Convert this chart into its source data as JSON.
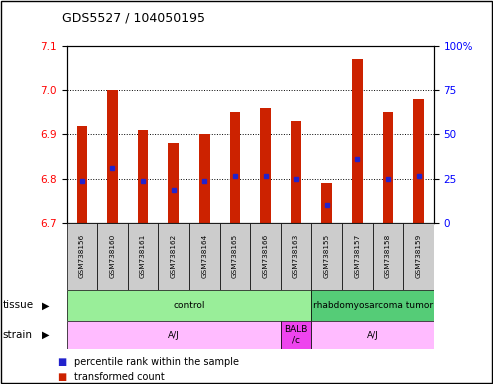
{
  "title": "GDS5527 / 104050195",
  "samples": [
    "GSM738156",
    "GSM738160",
    "GSM738161",
    "GSM738162",
    "GSM738164",
    "GSM738165",
    "GSM738166",
    "GSM738163",
    "GSM738155",
    "GSM738157",
    "GSM738158",
    "GSM738159"
  ],
  "bar_tops": [
    6.92,
    7.0,
    6.91,
    6.88,
    6.9,
    6.95,
    6.96,
    6.93,
    6.79,
    7.07,
    6.95,
    6.98
  ],
  "percentile_values": [
    6.795,
    6.825,
    6.795,
    6.775,
    6.795,
    6.805,
    6.805,
    6.8,
    6.74,
    6.845,
    6.8,
    6.805
  ],
  "bar_bottom": 6.7,
  "ylim_left": [
    6.7,
    7.1
  ],
  "ylim_right": [
    0,
    100
  ],
  "yticks_left": [
    6.7,
    6.8,
    6.9,
    7.0,
    7.1
  ],
  "yticks_right": [
    0,
    25,
    50,
    75,
    100
  ],
  "bar_color": "#cc2200",
  "percentile_color": "#2222cc",
  "sample_bg_color": "#cccccc",
  "tissue_groups": [
    {
      "label": "control",
      "start": 0,
      "end": 8,
      "color": "#99ee99"
    },
    {
      "label": "rhabdomyosarcoma tumor",
      "start": 8,
      "end": 12,
      "color": "#55cc77"
    }
  ],
  "strain_groups": [
    {
      "label": "A/J",
      "start": 0,
      "end": 7,
      "color": "#ffbbff"
    },
    {
      "label": "BALB\n/c",
      "start": 7,
      "end": 8,
      "color": "#ee44ee"
    },
    {
      "label": "A/J",
      "start": 8,
      "end": 12,
      "color": "#ffbbff"
    }
  ],
  "tissue_label": "tissue",
  "strain_label": "strain",
  "legend_items": [
    {
      "label": "transformed count",
      "color": "#cc2200"
    },
    {
      "label": "percentile rank within the sample",
      "color": "#2222cc"
    }
  ],
  "bar_width": 0.35,
  "background_color": "#ffffff"
}
